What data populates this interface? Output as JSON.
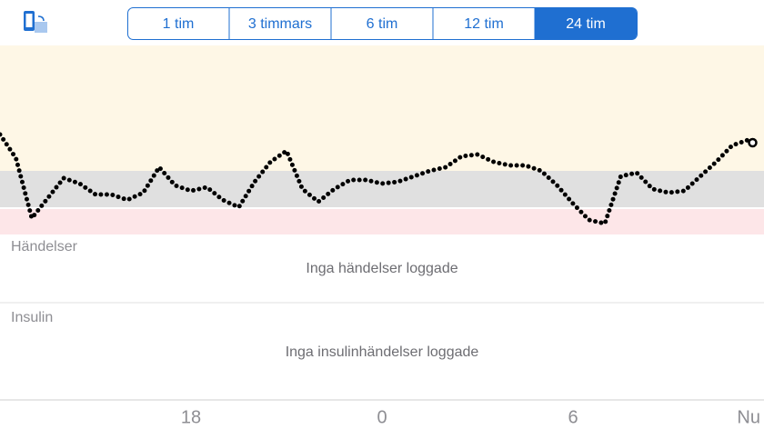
{
  "toolbar": {
    "segments": [
      "1 tim",
      "3 timmars",
      "6 tim",
      "12 tim",
      "24 tim"
    ],
    "selected": 4
  },
  "chart_data": {
    "type": "line",
    "x": [
      12,
      12.5,
      13,
      13.5,
      14,
      14.5,
      15,
      15.5,
      16,
      16.5,
      17,
      17.5,
      18,
      18.5,
      19,
      19.5,
      20,
      20.5,
      21,
      21.5,
      22,
      22.5,
      23,
      23.5,
      24,
      24.5,
      25,
      25.5,
      26,
      26.5,
      27,
      27.5,
      28,
      28.5,
      29,
      29.5,
      30,
      30.5,
      31,
      31.5,
      32,
      32.5,
      33,
      33.5,
      34,
      34.5,
      35,
      35.5
    ],
    "values": [
      8.0,
      6.7,
      3.4,
      4.5,
      5.6,
      5.3,
      4.7,
      4.7,
      4.4,
      4.8,
      6.2,
      5.2,
      4.9,
      5.1,
      4.4,
      4.0,
      5.4,
      6.5,
      7.1,
      5.0,
      4.3,
      5.0,
      5.5,
      5.5,
      5.3,
      5.4,
      5.7,
      6.0,
      6.2,
      6.8,
      6.9,
      6.5,
      6.3,
      6.3,
      6.0,
      5.2,
      4.2,
      3.3,
      3.1,
      5.7,
      5.9,
      5.0,
      4.8,
      4.9,
      5.7,
      6.5,
      7.4,
      7.7
    ],
    "color": "#000000",
    "xlim": [
      12,
      36
    ],
    "ylim": [
      2.5,
      12.9
    ],
    "target_low": 4,
    "target_high": 6,
    "xticks": [
      {
        "value": 18,
        "label": "18"
      },
      {
        "value": 24,
        "label": "0"
      },
      {
        "value": 30,
        "label": "6"
      },
      {
        "value": 36,
        "label": "Nu"
      }
    ]
  },
  "events": {
    "title": "Händelser",
    "empty": "Inga händelser loggade"
  },
  "insulin": {
    "title": "Insulin",
    "empty": "Inga insulinhändelser loggade"
  }
}
